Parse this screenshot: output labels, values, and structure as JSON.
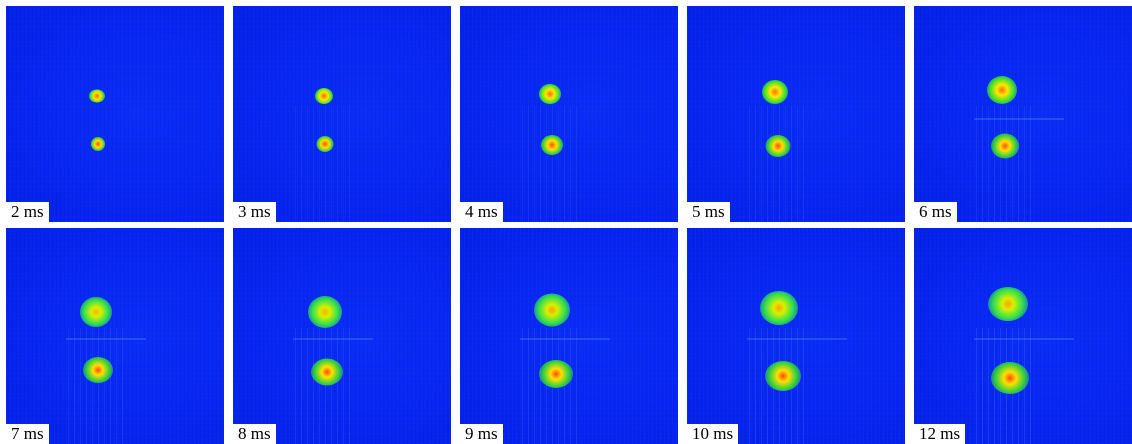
{
  "frames": [
    {
      "label": "2 ms"
    },
    {
      "label": "3 ms"
    },
    {
      "label": "4 ms"
    },
    {
      "label": "5 ms"
    },
    {
      "label": "6 ms"
    },
    {
      "label": "7 ms"
    },
    {
      "label": "8 ms"
    },
    {
      "label": "9 ms"
    },
    {
      "label": "10 ms"
    },
    {
      "label": "12 ms"
    }
  ],
  "colors": {
    "background": "#0624ee",
    "spot_core": "#ff4a00",
    "spot_mid": "#ffee00",
    "spot_edge": "#00e060"
  }
}
